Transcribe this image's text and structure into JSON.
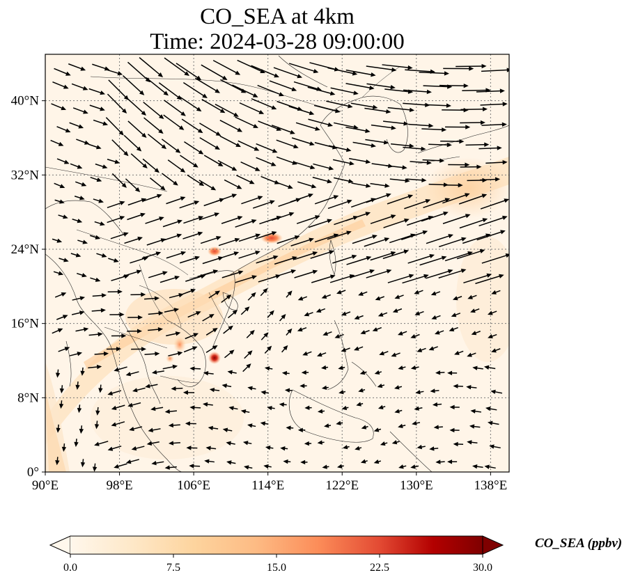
{
  "title": {
    "line1": "CO_SEA at 4km",
    "line2": "Time: 2024-03-28 09:00:00"
  },
  "map": {
    "projection": "PlateCarree",
    "lon_range": [
      90,
      140
    ],
    "lat_range": [
      0,
      45
    ],
    "lon_ticks": [
      "90°E",
      "98°E",
      "106°E",
      "114°E",
      "122°E",
      "130°E",
      "138°E"
    ],
    "lat_ticks": [
      "0°",
      "8°N",
      "16°N",
      "24°N",
      "32°N",
      "40°N"
    ],
    "gridlines": true,
    "features": [
      "coastlines",
      "country borders",
      "wind vectors"
    ],
    "hotspots": [
      {
        "lon": 108.3,
        "lat": 12.3,
        "level": "high"
      },
      {
        "lon": 107.7,
        "lat": 23.8,
        "level": "medium"
      },
      {
        "lon": 113.8,
        "lat": 25.1,
        "level": "medium"
      },
      {
        "lon": 104.8,
        "lat": 13.8,
        "level": "low"
      },
      {
        "lon": 103.5,
        "lat": 12.3,
        "level": "low"
      }
    ]
  },
  "colorbar": {
    "ticks": [
      "0.0",
      "7.5",
      "15.0",
      "22.5",
      "30.0"
    ],
    "min": 0,
    "max": 30,
    "colormap": "OrRd",
    "extend": "both",
    "label": "CO_SEA (ppbv)"
  }
}
